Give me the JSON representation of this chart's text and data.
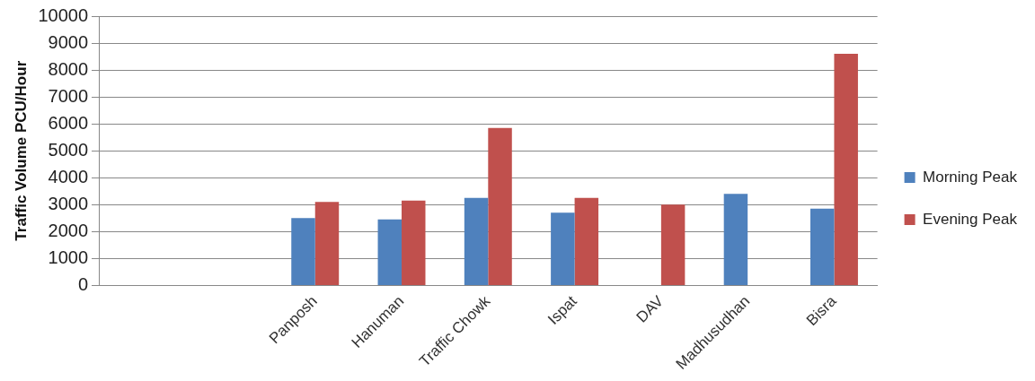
{
  "chart_data": {
    "type": "bar",
    "ylabel": "Traffic Volume PCU/Hour",
    "categories": [
      null,
      null,
      "Panposh",
      "Hanuman",
      "Traffic Chowk",
      "Ispat",
      "DAV",
      "Madhusudhan",
      "Bisra"
    ],
    "series": [
      {
        "name": "Morning Peak",
        "color": "#4f81bd",
        "values": [
          null,
          null,
          2500,
          2450,
          3250,
          2700,
          null,
          3400,
          2850
        ]
      },
      {
        "name": "Evening Peak",
        "color": "#c0504d",
        "values": [
          null,
          null,
          3100,
          3150,
          5850,
          3250,
          3000,
          null,
          8600
        ]
      }
    ],
    "ylim": [
      0,
      10000
    ],
    "yticks": [
      0,
      1000,
      2000,
      3000,
      4000,
      5000,
      6000,
      7000,
      8000,
      9000,
      10000
    ],
    "grid": "y",
    "legend": "right"
  }
}
